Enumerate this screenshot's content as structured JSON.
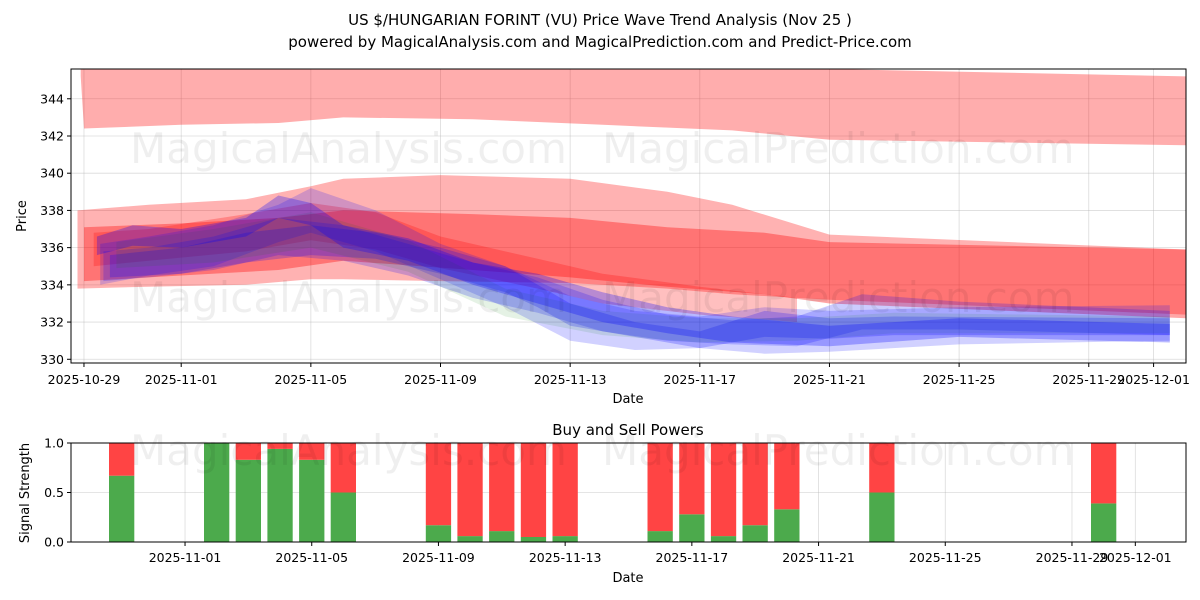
{
  "page": {
    "title": "US $/HUNGARIAN FORINT (VU) Price Wave Trend Analysis (Nov 25 )",
    "subtitle": "powered by MagicalAnalysis.com and MagicalPrediction.com and Predict-Price.com",
    "watermarks": [
      "MagicalAnalysis.com",
      "MagicalPrediction.com"
    ]
  },
  "colors": {
    "red": "#ff0000",
    "blue": "#0000ff",
    "green": "#008000",
    "buy": "#4caa4c",
    "sell": "#ff4444"
  },
  "chart_data": [
    {
      "type": "area",
      "title": "",
      "xlabel": "Date",
      "ylabel": "Price",
      "ylim": [
        329.8,
        345.6
      ],
      "xlim_days": [
        -0.4,
        34.0
      ],
      "x_origin": "2025-10-29",
      "x_ticks": [
        {
          "day": 0,
          "label": "2025-10-29"
        },
        {
          "day": 3,
          "label": "2025-11-01"
        },
        {
          "day": 7,
          "label": "2025-11-05"
        },
        {
          "day": 11,
          "label": "2025-11-09"
        },
        {
          "day": 15,
          "label": "2025-11-13"
        },
        {
          "day": 19,
          "label": "2025-11-17"
        },
        {
          "day": 23,
          "label": "2025-11-21"
        },
        {
          "day": 27,
          "label": "2025-11-25"
        },
        {
          "day": 31,
          "label": "2025-11-29"
        },
        {
          "day": 33,
          "label": "2025-12-01"
        }
      ],
      "y_ticks": [
        330,
        332,
        334,
        336,
        338,
        340,
        342,
        344
      ],
      "series": [
        {
          "name": "upper-red-band",
          "color": "red",
          "opacity": 0.32,
          "x": [
            -0.1,
            0,
            3,
            6,
            8,
            12,
            16,
            20,
            23,
            34
          ],
          "upper": [
            345.6,
            345.6,
            345.6,
            345.6,
            345.6,
            345.6,
            345.6,
            345.6,
            345.6,
            345.2
          ],
          "lower": [
            345.2,
            342.4,
            342.6,
            342.7,
            343.0,
            342.9,
            342.6,
            342.3,
            341.8,
            341.5
          ]
        },
        {
          "name": "red-wide-band",
          "color": "red",
          "opacity": 0.3,
          "x": [
            -0.2,
            2,
            5,
            7,
            8,
            11,
            15,
            18,
            20,
            23,
            34
          ],
          "upper": [
            338.0,
            338.3,
            338.6,
            339.3,
            339.7,
            339.9,
            339.7,
            339.0,
            338.3,
            336.7,
            335.9
          ],
          "lower": [
            333.8,
            333.9,
            334.0,
            334.3,
            334.3,
            334.2,
            334.1,
            333.8,
            333.5,
            333.2,
            332.4
          ]
        },
        {
          "name": "red-mid-band",
          "color": "red",
          "opacity": 0.35,
          "x": [
            0,
            3,
            6,
            8,
            12,
            15,
            18,
            21,
            23,
            34
          ],
          "upper": [
            337.1,
            337.3,
            337.6,
            338.0,
            337.8,
            337.6,
            337.1,
            336.8,
            336.3,
            335.9
          ],
          "lower": [
            334.2,
            334.5,
            334.8,
            335.3,
            334.8,
            334.4,
            333.9,
            333.5,
            333.0,
            332.2
          ]
        },
        {
          "name": "red-short-band",
          "color": "red",
          "opacity": 0.25,
          "x": [
            0.3,
            2,
            5,
            7,
            9,
            11,
            14,
            16,
            19,
            22
          ],
          "upper": [
            336.8,
            337.0,
            337.8,
            338.4,
            337.9,
            336.6,
            335.4,
            334.6,
            333.9,
            333.3
          ],
          "lower": [
            335.0,
            335.3,
            335.8,
            336.4,
            335.9,
            334.9,
            333.8,
            333.0,
            332.4,
            332.0
          ]
        },
        {
          "name": "blue-band-1",
          "color": "blue",
          "opacity": 0.18,
          "x": [
            0.5,
            2,
            4,
            6,
            7,
            9,
            11,
            13,
            15,
            17,
            19,
            21,
            23,
            27,
            33.5
          ],
          "upper": [
            336.2,
            336.6,
            337.2,
            338.3,
            339.2,
            338.0,
            336.2,
            335.0,
            333.4,
            332.6,
            332.3,
            332.8,
            332.6,
            332.8,
            332.9
          ],
          "lower": [
            334.0,
            334.5,
            335.0,
            336.3,
            336.8,
            335.8,
            334.3,
            332.8,
            331.0,
            330.5,
            330.6,
            330.3,
            330.4,
            330.8,
            331.0
          ]
        },
        {
          "name": "blue-band-2",
          "color": "blue",
          "opacity": 0.2,
          "x": [
            0.6,
            2,
            4,
            6,
            8,
            10,
            12,
            14,
            16,
            18,
            20,
            22,
            24,
            27,
            33.5
          ],
          "upper": [
            335.8,
            336.0,
            336.6,
            337.6,
            337.2,
            336.2,
            335.2,
            334.4,
            333.2,
            332.4,
            332.1,
            332.3,
            333.5,
            333.1,
            332.6
          ],
          "lower": [
            334.2,
            334.4,
            334.8,
            335.6,
            335.3,
            334.5,
            333.3,
            332.5,
            331.5,
            331.0,
            330.8,
            330.7,
            331.6,
            331.6,
            331.3
          ]
        },
        {
          "name": "blue-band-3",
          "color": "blue",
          "opacity": 0.22,
          "x": [
            0.8,
            3,
            5,
            7,
            9,
            11,
            13,
            14,
            15,
            17,
            19,
            21,
            23,
            25,
            33.5
          ],
          "upper": [
            335.6,
            336.0,
            336.8,
            337.2,
            336.8,
            336.0,
            335.0,
            334.0,
            333.0,
            332.0,
            331.5,
            332.6,
            332.2,
            332.3,
            332.2
          ],
          "lower": [
            334.4,
            334.6,
            335.2,
            335.6,
            335.4,
            334.6,
            333.6,
            332.8,
            331.8,
            331.2,
            330.6,
            331.2,
            331.1,
            331.3,
            331.3
          ]
        },
        {
          "name": "green-band",
          "color": "green",
          "opacity": 0.1,
          "x": [
            1,
            4,
            7,
            10,
            13,
            16,
            19,
            22,
            25,
            33.5
          ],
          "upper": [
            336.3,
            337.0,
            337.9,
            336.4,
            333.8,
            332.6,
            332.2,
            332.2,
            332.5,
            332.3
          ],
          "lower": [
            334.9,
            335.2,
            336.0,
            334.7,
            332.3,
            331.3,
            330.9,
            331.0,
            331.4,
            331.4
          ]
        },
        {
          "name": "purple-wave",
          "color": "blue",
          "opacity": 0.28,
          "x": [
            0.4,
            1.5,
            3,
            5,
            6,
            7,
            8,
            10,
            12,
            14,
            16,
            18,
            20,
            23,
            27,
            33.5
          ],
          "upper": [
            336.6,
            337.2,
            337.0,
            337.6,
            338.8,
            338.4,
            337.2,
            336.5,
            335.2,
            334.6,
            333.6,
            332.8,
            332.3,
            331.8,
            332.2,
            331.9
          ],
          "lower": [
            335.6,
            336.1,
            336.0,
            336.6,
            337.6,
            337.2,
            336.0,
            335.3,
            334.0,
            333.0,
            332.0,
            331.4,
            330.9,
            330.7,
            331.2,
            330.9
          ]
        }
      ]
    },
    {
      "type": "bar",
      "title": "Buy and Sell Powers",
      "xlabel": "Date",
      "ylabel": "Signal Strength",
      "ylim": [
        0,
        1.0
      ],
      "xlim_days": [
        -0.6,
        34.6
      ],
      "x_origin": "2025-10-29",
      "y_ticks": [
        {
          "value": 0.0,
          "label": "0.0"
        },
        {
          "value": 0.5,
          "label": "0.5"
        },
        {
          "value": 1.0,
          "label": "1.0"
        }
      ],
      "x_ticks": [
        {
          "day": 3,
          "label": "2025-11-01"
        },
        {
          "day": 7,
          "label": "2025-11-05"
        },
        {
          "day": 11,
          "label": "2025-11-09"
        },
        {
          "day": 15,
          "label": "2025-11-13"
        },
        {
          "day": 19,
          "label": "2025-11-17"
        },
        {
          "day": 23,
          "label": "2025-11-21"
        },
        {
          "day": 27,
          "label": "2025-11-25"
        },
        {
          "day": 31,
          "label": "2025-11-29"
        },
        {
          "day": 33,
          "label": "2025-12-01"
        }
      ],
      "bars": [
        {
          "day": 1,
          "buy": 0.67
        },
        {
          "day": 4,
          "buy": 1.0
        },
        {
          "day": 5,
          "buy": 0.83
        },
        {
          "day": 6,
          "buy": 0.94
        },
        {
          "day": 7,
          "buy": 0.83
        },
        {
          "day": 8,
          "buy": 0.5
        },
        {
          "day": 11,
          "buy": 0.17
        },
        {
          "day": 12,
          "buy": 0.06
        },
        {
          "day": 13,
          "buy": 0.11
        },
        {
          "day": 14,
          "buy": 0.05
        },
        {
          "day": 15,
          "buy": 0.06
        },
        {
          "day": 18,
          "buy": 0.11
        },
        {
          "day": 19,
          "buy": 0.28
        },
        {
          "day": 20,
          "buy": 0.06
        },
        {
          "day": 21,
          "buy": 0.17
        },
        {
          "day": 22,
          "buy": 0.33
        },
        {
          "day": 25,
          "buy": 0.5
        },
        {
          "day": 32,
          "buy": 0.39
        }
      ]
    }
  ]
}
